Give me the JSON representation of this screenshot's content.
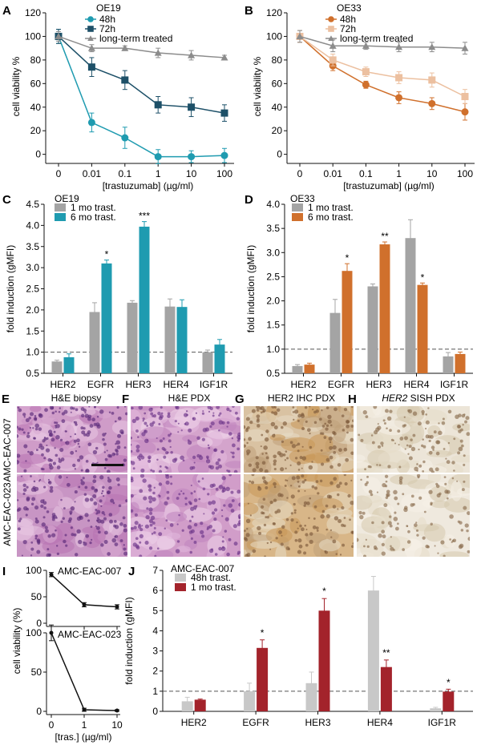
{
  "figure": {
    "colors": {
      "teal": "#1f9bb0",
      "navy": "#1d5068",
      "gray": "#8c8c8c",
      "orange": "#d0702c",
      "peach": "#ecc0a0",
      "lightgray": "#c8c8c8",
      "darkred": "#a3232b",
      "midgray": "#a4a4a4"
    }
  },
  "chart_data": [
    {
      "id": "A",
      "type": "line",
      "panel_label": "A",
      "title": "OE19",
      "x": [
        "0",
        "0.01",
        "0.1",
        "1",
        "10",
        "100"
      ],
      "xlabel": "[trastuzumab] (µg/ml)",
      "ylabel": "cell viability %",
      "ylim": [
        -5,
        120
      ],
      "yticks": [
        0,
        20,
        40,
        60,
        80,
        100,
        120
      ],
      "legend_position": "top-right",
      "series": [
        {
          "name": "48h",
          "color": "#1f9bb0",
          "marker": "circle",
          "values": [
            100,
            27,
            14,
            -2,
            -2,
            -1
          ],
          "errors": [
            6,
            8,
            9,
            6,
            5,
            6
          ]
        },
        {
          "name": "72h",
          "color": "#1d5068",
          "marker": "square",
          "values": [
            100,
            74,
            63,
            42,
            40,
            35
          ],
          "errors": [
            6,
            8,
            8,
            7,
            8,
            7
          ]
        },
        {
          "name": "long-term treated",
          "color": "#8c8c8c",
          "marker": "triangle",
          "values": [
            100,
            90,
            90,
            86,
            84,
            82
          ],
          "errors": [
            4,
            3,
            2,
            4,
            4,
            2
          ]
        }
      ]
    },
    {
      "id": "B",
      "type": "line",
      "panel_label": "B",
      "title": "OE33",
      "x": [
        "0",
        "0.01",
        "0.1",
        "1",
        "10",
        "100"
      ],
      "xlabel": "[trastuzumab] (µg/ml)",
      "ylabel": "cell viability %",
      "ylim": [
        -5,
        120
      ],
      "yticks": [
        0,
        20,
        40,
        60,
        80,
        100,
        120
      ],
      "legend_position": "top-right",
      "series": [
        {
          "name": "48h",
          "color": "#d0702c",
          "marker": "circle",
          "values": [
            100,
            75,
            59,
            48,
            43,
            36
          ],
          "errors": [
            5,
            4,
            3,
            5,
            5,
            7
          ]
        },
        {
          "name": "72h",
          "color": "#ecc0a0",
          "marker": "square",
          "values": [
            100,
            80,
            70,
            65,
            63,
            49
          ],
          "errors": [
            5,
            5,
            4,
            5,
            6,
            6
          ]
        },
        {
          "name": "long-term treated",
          "color": "#8c8c8c",
          "marker": "triangle",
          "values": [
            100,
            92,
            92,
            91,
            91,
            90
          ],
          "errors": [
            5,
            5,
            3,
            4,
            4,
            5
          ]
        }
      ]
    },
    {
      "id": "C",
      "type": "bar",
      "panel_label": "C",
      "title": "OE19",
      "categories": [
        "HER2",
        "EGFR",
        "HER3",
        "HER4",
        "IGF1R"
      ],
      "ylabel": "fold induction (gMFI)",
      "ylim": [
        0.5,
        4.5
      ],
      "yticks": [
        "0.5",
        "1.0",
        "1.5",
        "2.0",
        "2.5",
        "3.0",
        "3.5",
        "4.0",
        "4.5"
      ],
      "reference_line": 1.0,
      "legend_position": "top-left",
      "series": [
        {
          "name": "1 mo trast.",
          "color": "#a4a4a4",
          "values": [
            0.78,
            1.95,
            2.17,
            2.08,
            1.0
          ],
          "errors": [
            0.03,
            0.22,
            0.05,
            0.18,
            0.05
          ]
        },
        {
          "name": "6 mo trast.",
          "color": "#1f9bb0",
          "values": [
            0.88,
            3.1,
            3.97,
            2.07,
            1.18
          ],
          "errors": [
            0.08,
            0.08,
            0.12,
            0.17,
            0.12
          ]
        }
      ],
      "annotations": [
        {
          "text": "*",
          "category": 1,
          "value": 3.18
        },
        {
          "text": "***",
          "category": 2,
          "value": 4.09
        }
      ]
    },
    {
      "id": "D",
      "type": "bar",
      "panel_label": "D",
      "title": "OE33",
      "categories": [
        "HER2",
        "EGFR",
        "HER3",
        "HER4",
        "IGF1R"
      ],
      "ylabel": "fold induction (gMFI)",
      "ylim": [
        0.5,
        4.0
      ],
      "yticks": [
        "0.5",
        "1.0",
        "1.5",
        "2.0",
        "2.5",
        "3.0",
        "3.5",
        "4.0"
      ],
      "reference_line": 1.0,
      "legend_position": "top-left",
      "series": [
        {
          "name": "1 mo trast.",
          "color": "#a4a4a4",
          "values": [
            0.65,
            1.75,
            2.3,
            3.3,
            0.85
          ],
          "errors": [
            0.03,
            0.28,
            0.05,
            0.38,
            0.08
          ]
        },
        {
          "name": "6 mo trast.",
          "color": "#d0702c",
          "values": [
            0.68,
            2.62,
            3.17,
            2.33,
            0.9
          ],
          "errors": [
            0.03,
            0.15,
            0.05,
            0.04,
            0.04
          ]
        }
      ],
      "annotations": [
        {
          "text": "*",
          "category": 1,
          "value": 2.77
        },
        {
          "text": "**",
          "category": 2,
          "value": 3.22
        },
        {
          "text": "*",
          "category": 3,
          "value": 2.37
        }
      ]
    },
    {
      "id": "I_top",
      "type": "line",
      "panel_label": "I",
      "title": "AMC-EAC-007",
      "x": [
        "0",
        "1",
        "10"
      ],
      "ylim": [
        0,
        100
      ],
      "yticks": [
        0,
        50,
        100
      ],
      "series": [
        {
          "name": "",
          "color": "#111111",
          "marker": "circle",
          "values": [
            92,
            35,
            31
          ],
          "errors": [
            4,
            4,
            4
          ]
        }
      ]
    },
    {
      "id": "I_bottom",
      "type": "line",
      "title": "AMC-EAC-023",
      "x": [
        "0",
        "1",
        "10"
      ],
      "xlabel": "[tras.] (µg/ml)",
      "ylabel": "cell viability (%)",
      "ylim": [
        0,
        100
      ],
      "yticks": [
        0,
        50,
        100
      ],
      "series": [
        {
          "name": "",
          "color": "#111111",
          "marker": "circle",
          "values": [
            100,
            2,
            1
          ],
          "errors": [
            10,
            2,
            1
          ]
        }
      ]
    },
    {
      "id": "J",
      "type": "bar",
      "panel_label": "J",
      "title": "AMC-EAC-007",
      "categories": [
        "HER2",
        "EGFR",
        "HER3",
        "HER4",
        "IGF1R"
      ],
      "ylabel": "fold induction (gMFI)",
      "ylim": [
        0,
        7
      ],
      "yticks": [
        "0",
        "1",
        "2",
        "3",
        "4",
        "5",
        "6",
        "7"
      ],
      "reference_line": 1,
      "legend_position": "top-left",
      "series": [
        {
          "name": "48h trast.",
          "color": "#c8c8c8",
          "values": [
            0.5,
            1.0,
            1.4,
            6.0,
            0.15
          ],
          "errors": [
            0.2,
            0.4,
            0.55,
            0.7,
            0.05
          ]
        },
        {
          "name": "1 mo trast.",
          "color": "#a3232b",
          "values": [
            0.58,
            3.15,
            5.0,
            2.2,
            0.98
          ],
          "errors": [
            0.03,
            0.4,
            0.6,
            0.35,
            0.12
          ]
        }
      ],
      "annotations": [
        {
          "text": "*",
          "category": 1,
          "value": 3.62
        },
        {
          "text": "*",
          "category": 2,
          "value": 5.68
        },
        {
          "text": "**",
          "category": 3,
          "value": 2.62
        },
        {
          "text": "*",
          "category": 4,
          "value": 1.16
        }
      ]
    }
  ],
  "micrographs": {
    "column_labels": [
      {
        "panel": "E",
        "title": "H&E biopsy"
      },
      {
        "panel": "F",
        "title": "H&E PDX"
      },
      {
        "panel": "G",
        "title": "HER2 IHC PDX"
      },
      {
        "panel": "H",
        "title_italic": "HER2",
        "title_rest": " SISH PDX"
      }
    ],
    "row_labels": [
      "AMC-EAC-007",
      "AMC-EAC-023"
    ]
  }
}
